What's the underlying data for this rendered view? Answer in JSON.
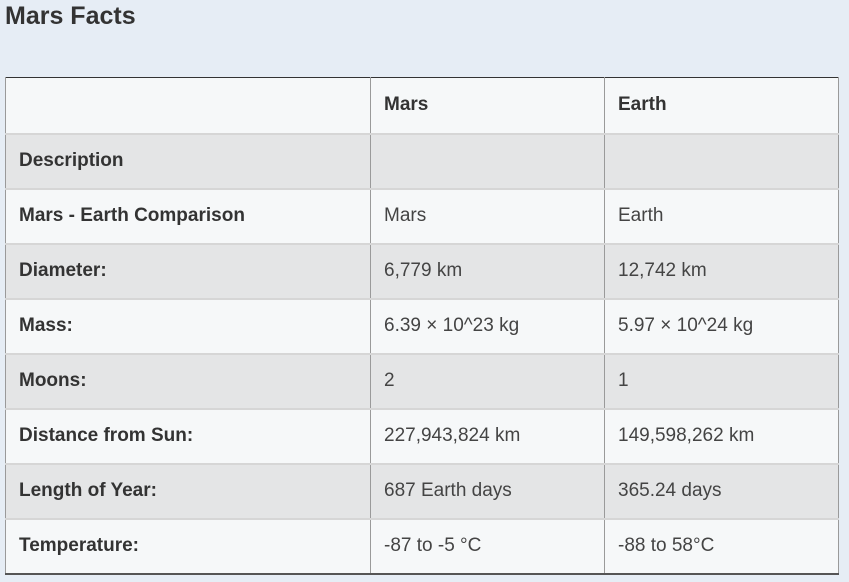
{
  "page": {
    "title": "Mars Facts"
  },
  "table": {
    "headers": [
      "",
      "Mars",
      "Earth"
    ],
    "rows": [
      {
        "label": "Description",
        "mars": "",
        "earth": ""
      },
      {
        "label": "Mars - Earth Comparison",
        "mars": "Mars",
        "earth": "Earth"
      },
      {
        "label": "Diameter:",
        "mars": "6,779 km",
        "earth": "12,742 km"
      },
      {
        "label": "Mass:",
        "mars": "6.39 × 10^23 kg",
        "earth": "5.97 × 10^24 kg"
      },
      {
        "label": "Moons:",
        "mars": "2",
        "earth": "1"
      },
      {
        "label": "Distance from Sun:",
        "mars": "227,943,824 km",
        "earth": "149,598,262 km"
      },
      {
        "label": "Length of Year:",
        "mars": "687 Earth days",
        "earth": "365.24 days"
      },
      {
        "label": "Temperature:",
        "mars": "-87 to -5 °C",
        "earth": "-88 to 58°C"
      }
    ]
  }
}
